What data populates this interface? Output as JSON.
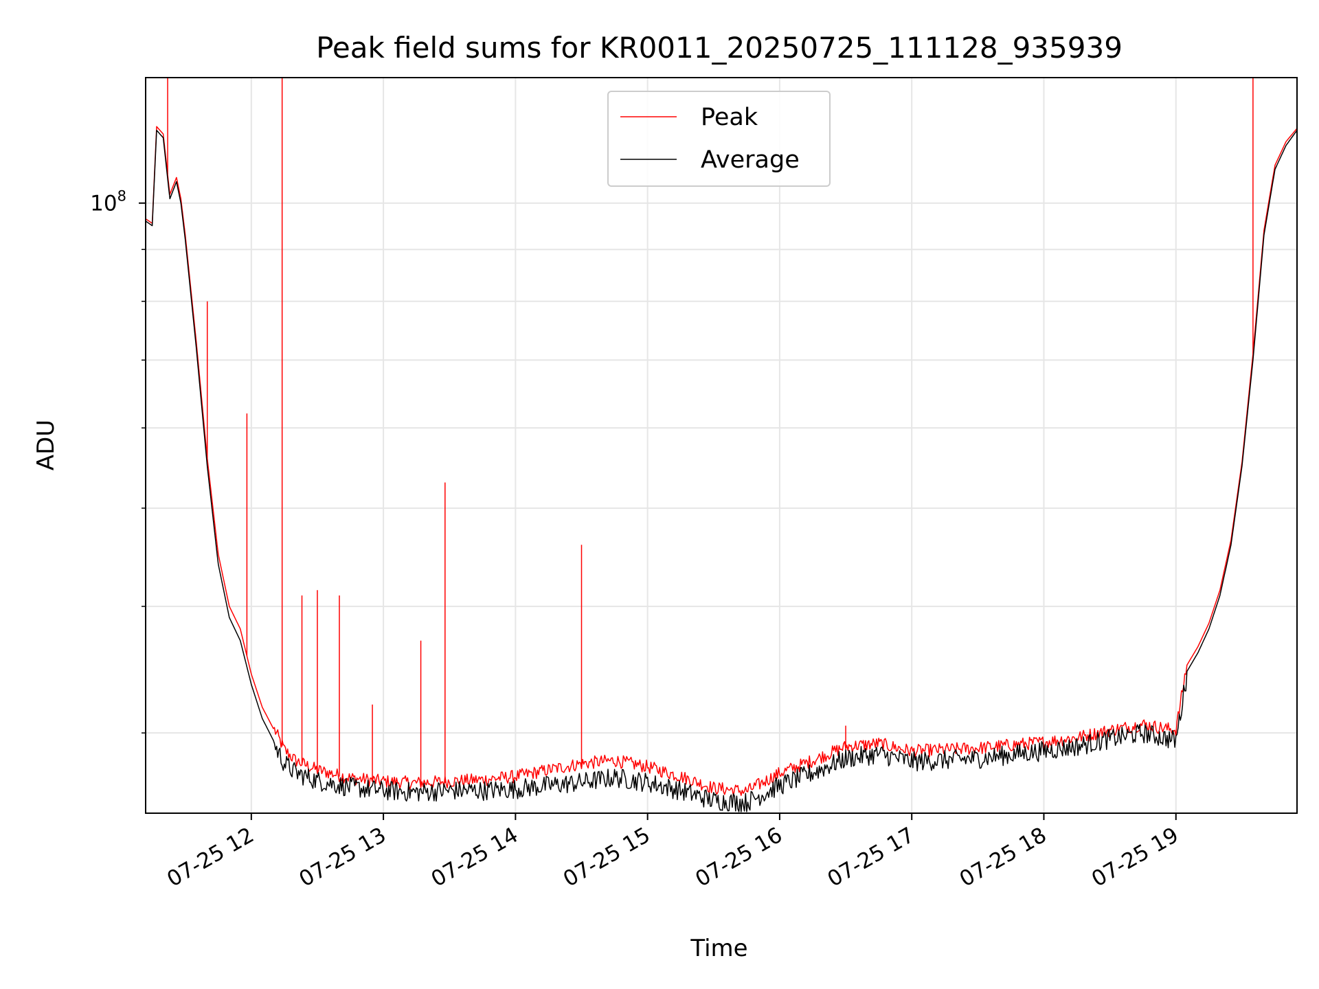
{
  "chart_data": {
    "type": "line",
    "title": "Peak field sums for KR0011_20250725_111128_935939",
    "xlabel": "Time",
    "ylabel": "ADU",
    "yscale": "log",
    "xlim": [
      "07-25 11:12",
      "07-25 19:55"
    ],
    "ylim": [
      25000000,
      133000000
    ],
    "grid": true,
    "legend": {
      "placement": "top-center",
      "entries": [
        "Peak",
        "Average"
      ]
    },
    "x_ticks": [
      "07-25 12",
      "07-25 13",
      "07-25 14",
      "07-25 15",
      "07-25 16",
      "07-25 17",
      "07-25 18",
      "07-25 19"
    ],
    "y_ticks": [
      "10^8"
    ],
    "colors": {
      "Peak": "#ff0000",
      "Average": "#000000",
      "grid": "#e6e6e6"
    },
    "series": [
      {
        "name": "Average",
        "x": [
          "07-25 11:12",
          "07-25 11:15",
          "07-25 11:17",
          "07-25 11:20",
          "07-25 11:23",
          "07-25 11:26",
          "07-25 11:28",
          "07-25 11:30",
          "07-25 11:35",
          "07-25 11:40",
          "07-25 11:45",
          "07-25 11:50",
          "07-25 11:55",
          "07-25 12:00",
          "07-25 12:05",
          "07-25 12:10",
          "07-25 12:15",
          "07-25 12:20",
          "07-25 12:30",
          "07-25 12:45",
          "07-25 13:00",
          "07-25 13:15",
          "07-25 13:30",
          "07-25 13:45",
          "07-25 14:00",
          "07-25 14:15",
          "07-25 14:30",
          "07-25 14:45",
          "07-25 15:00",
          "07-25 15:15",
          "07-25 15:30",
          "07-25 15:45",
          "07-25 16:00",
          "07-25 16:15",
          "07-25 16:30",
          "07-25 16:45",
          "07-25 17:00",
          "07-25 17:30",
          "07-25 18:00",
          "07-25 18:15",
          "07-25 18:30",
          "07-25 18:45",
          "07-25 19:00",
          "07-25 19:05",
          "07-25 19:10",
          "07-25 19:15",
          "07-25 19:20",
          "07-25 19:25",
          "07-25 19:30",
          "07-25 19:35",
          "07-25 19:40",
          "07-25 19:45",
          "07-25 19:50",
          "07-25 19:55"
        ],
        "values": [
          96000000,
          95000000,
          118000000,
          116000000,
          101000000,
          105000000,
          100000000,
          92000000,
          72000000,
          55000000,
          44000000,
          39000000,
          37000000,
          33500000,
          31000000,
          29500000,
          28200000,
          27600000,
          27100000,
          26700000,
          26500000,
          26400000,
          26500000,
          26500000,
          26600000,
          26800000,
          27000000,
          27300000,
          27000000,
          26500000,
          25900000,
          25800000,
          26800000,
          27600000,
          28500000,
          28800000,
          28300000,
          28500000,
          29000000,
          29300000,
          29800000,
          30200000,
          29700000,
          34500000,
          36000000,
          38000000,
          41000000,
          46000000,
          55000000,
          70000000,
          93000000,
          108000000,
          114000000,
          118000000
        ]
      },
      {
        "name": "Peak",
        "x": [
          "07-25 11:12",
          "07-25 11:15",
          "07-25 11:17",
          "07-25 11:20",
          "07-25 11:23",
          "07-25 11:26",
          "07-25 11:28",
          "07-25 11:30",
          "07-25 11:35",
          "07-25 11:40",
          "07-25 11:45",
          "07-25 11:50",
          "07-25 11:55",
          "07-25 12:00",
          "07-25 12:05",
          "07-25 12:10",
          "07-25 12:15",
          "07-25 12:20",
          "07-25 12:30",
          "07-25 12:45",
          "07-25 13:00",
          "07-25 13:15",
          "07-25 13:30",
          "07-25 13:45",
          "07-25 14:00",
          "07-25 14:15",
          "07-25 14:30",
          "07-25 14:45",
          "07-25 15:00",
          "07-25 15:15",
          "07-25 15:30",
          "07-25 15:45",
          "07-25 16:00",
          "07-25 16:15",
          "07-25 16:30",
          "07-25 16:45",
          "07-25 17:00",
          "07-25 17:30",
          "07-25 18:00",
          "07-25 18:15",
          "07-25 18:30",
          "07-25 18:45",
          "07-25 19:00",
          "07-25 19:05",
          "07-25 19:10",
          "07-25 19:15",
          "07-25 19:20",
          "07-25 19:25",
          "07-25 19:30",
          "07-25 19:35",
          "07-25 19:40",
          "07-25 19:45",
          "07-25 19:50",
          "07-25 19:55"
        ],
        "values": [
          96500000,
          95500000,
          119000000,
          117000000,
          102000000,
          106000000,
          101000000,
          93000000,
          73000000,
          56000000,
          45000000,
          40000000,
          38000000,
          34300000,
          31800000,
          30300000,
          28800000,
          28100000,
          27500000,
          27000000,
          26800000,
          26700000,
          26800000,
          26900000,
          27100000,
          27500000,
          27900000,
          28100000,
          27700000,
          27100000,
          26400000,
          26200000,
          27300000,
          28100000,
          29000000,
          29200000,
          28700000,
          28900000,
          29300000,
          29600000,
          30100000,
          30500000,
          30100000,
          35000000,
          36500000,
          38500000,
          41500000,
          46500000,
          55500000,
          71000000,
          94000000,
          109000000,
          115000000,
          118500000
        ],
        "spikes": [
          {
            "x": "07-25 11:22",
            "y": 133000000
          },
          {
            "x": "07-25 11:40",
            "y": 80000000
          },
          {
            "x": "07-25 11:58",
            "y": 62000000
          },
          {
            "x": "07-25 12:14",
            "y": 133000000
          },
          {
            "x": "07-25 12:23",
            "y": 41000000
          },
          {
            "x": "07-25 12:30",
            "y": 41500000
          },
          {
            "x": "07-25 12:40",
            "y": 41000000
          },
          {
            "x": "07-25 12:55",
            "y": 32000000
          },
          {
            "x": "07-25 13:17",
            "y": 37000000
          },
          {
            "x": "07-25 13:28",
            "y": 53000000
          },
          {
            "x": "07-25 14:30",
            "y": 46000000
          },
          {
            "x": "07-25 16:30",
            "y": 30500000
          },
          {
            "x": "07-25 19:35",
            "y": 133000000
          }
        ]
      }
    ]
  }
}
